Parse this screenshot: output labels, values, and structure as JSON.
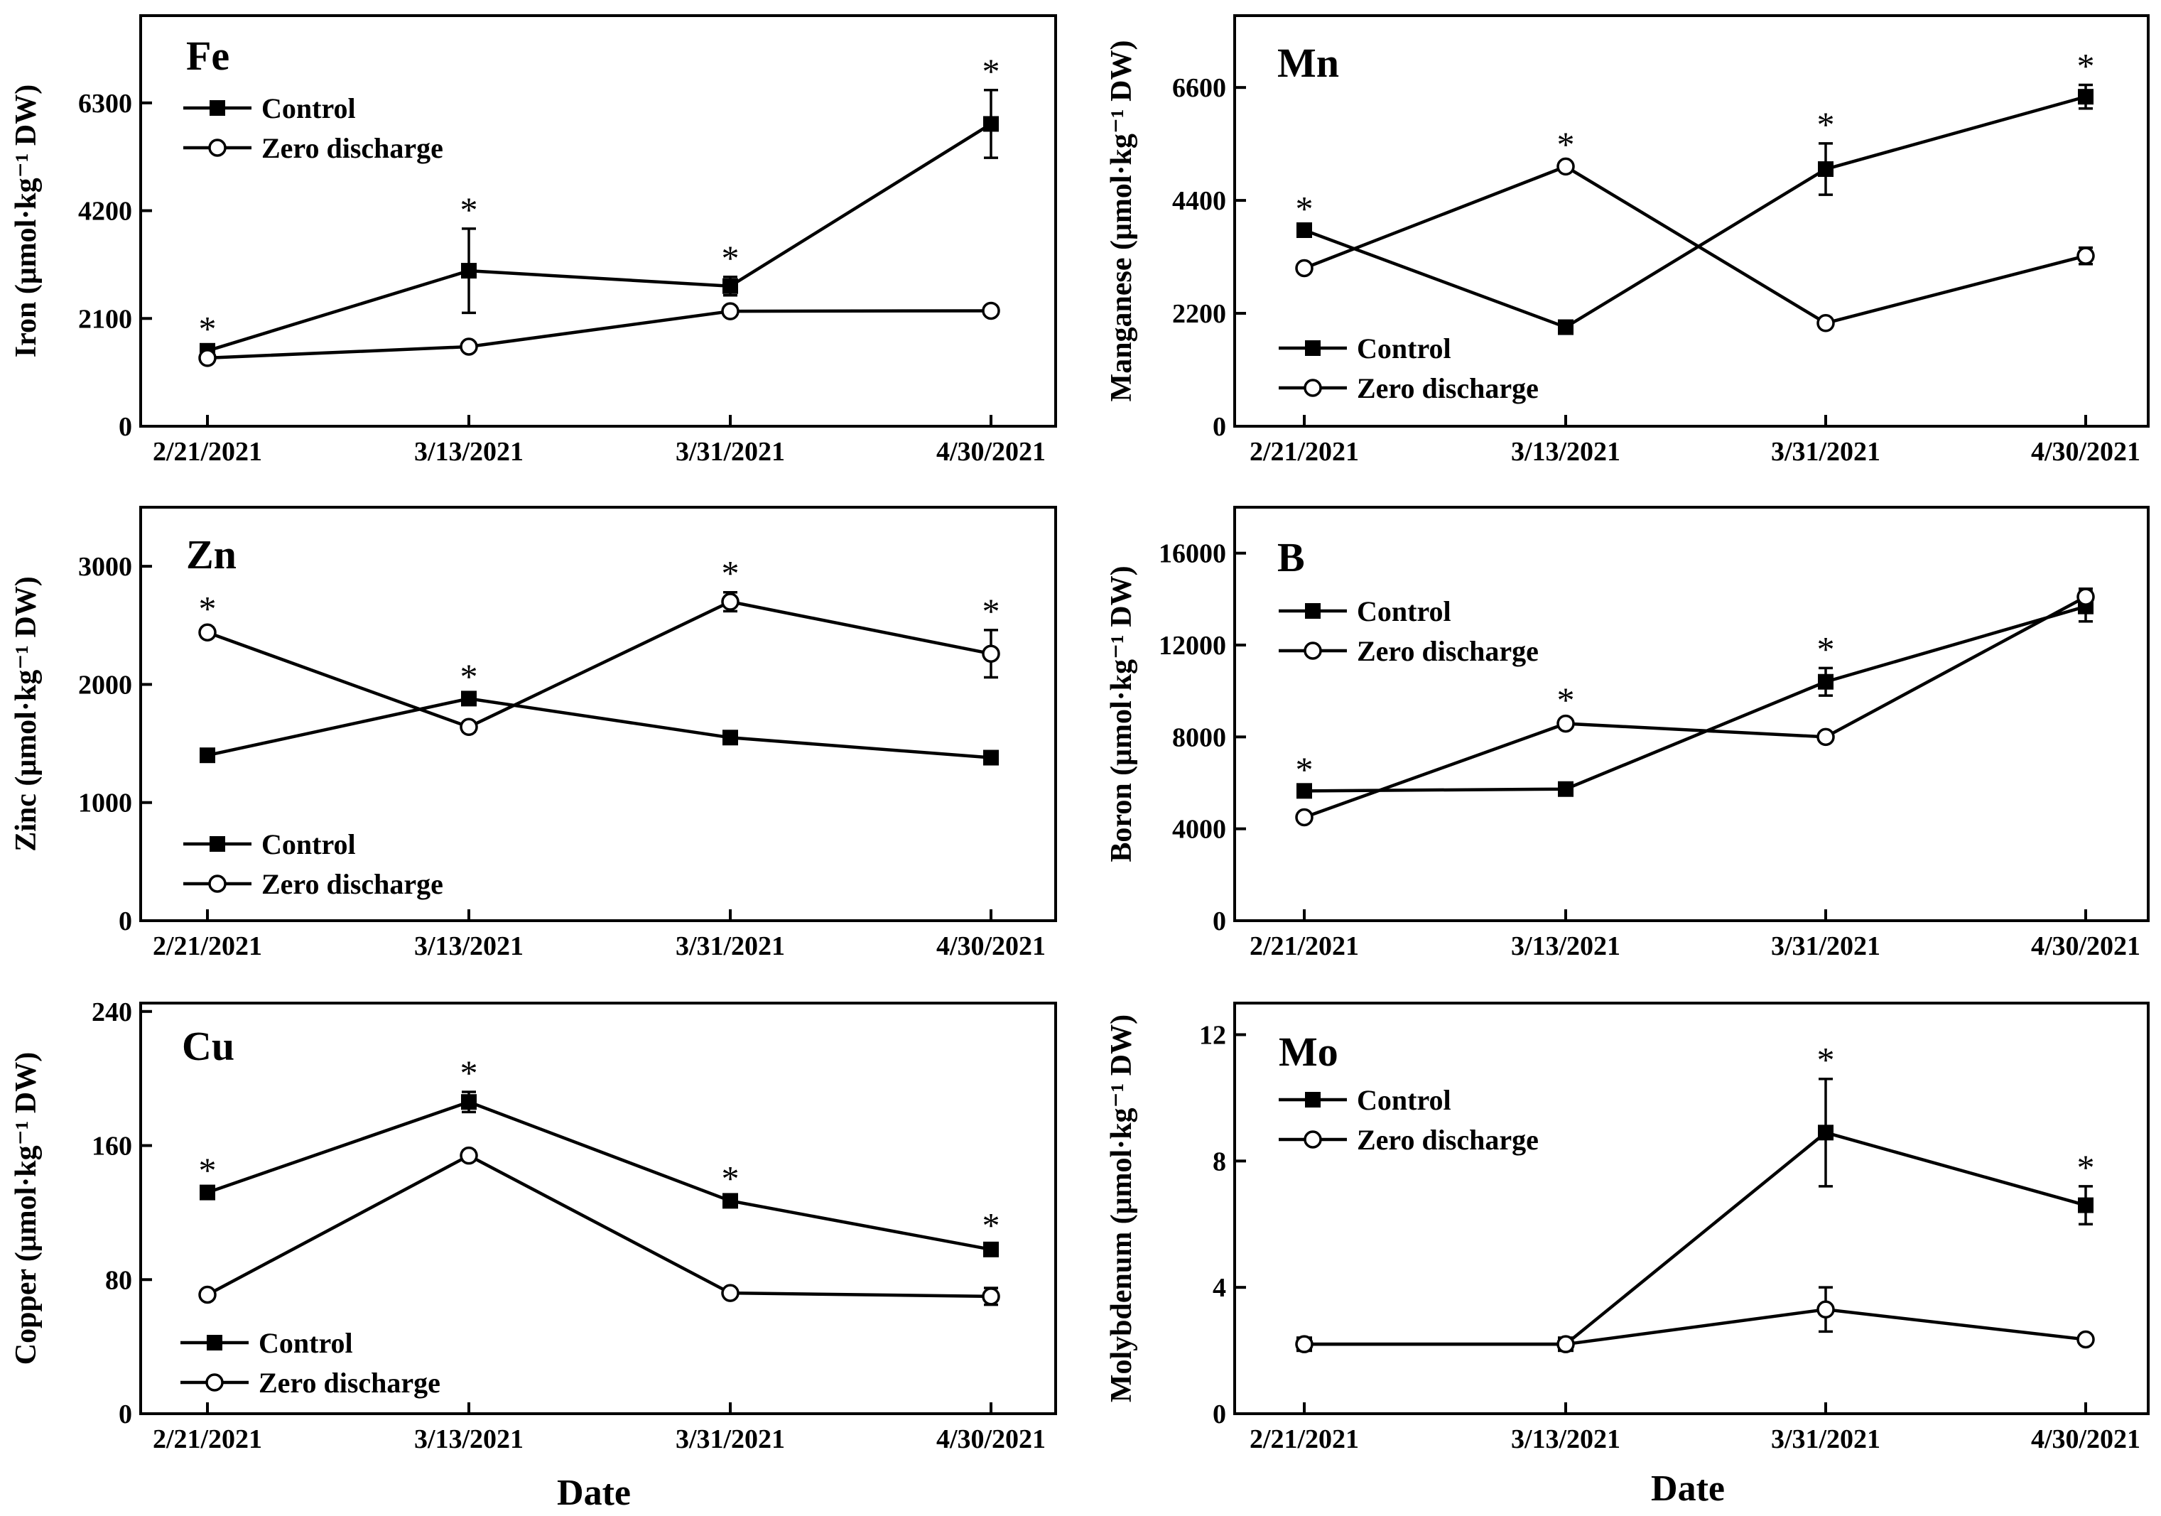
{
  "figure": {
    "xlabels": [
      "Date",
      "Date"
    ]
  },
  "chart_data": [
    {
      "type": "line",
      "title": "Fe",
      "ylabel": "Iron (μmol·kg⁻¹ DW)",
      "categories": [
        "2/21/2021",
        "3/13/2021",
        "3/31/2021",
        "4/30/2021"
      ],
      "ylim": [
        0,
        8000
      ],
      "yticks": [
        0,
        2100,
        4200,
        6300
      ],
      "legend_position": "top-left",
      "series": [
        {
          "name": "Control",
          "marker": "square",
          "values": [
            1470,
            3030,
            2730,
            5890
          ],
          "errors": [
            60,
            820,
            180,
            660
          ]
        },
        {
          "name": "Zero discharge",
          "marker": "circle",
          "values": [
            1330,
            1550,
            2240,
            2250
          ],
          "errors": [
            60,
            60,
            90,
            50
          ]
        }
      ],
      "significance": [
        "*",
        "*",
        "*",
        "*"
      ]
    },
    {
      "type": "line",
      "title": "Mn",
      "ylabel": "Manganese (μmol·kg⁻¹ DW)",
      "categories": [
        "2/21/2021",
        "3/13/2021",
        "3/31/2021",
        "4/30/2021"
      ],
      "ylim": [
        0,
        8000
      ],
      "yticks": [
        0,
        2200,
        4400,
        6600
      ],
      "legend_position": "bottom-left",
      "series": [
        {
          "name": "Control",
          "marker": "square",
          "values": [
            3820,
            1930,
            5010,
            6420
          ],
          "errors": [
            50,
            60,
            500,
            230
          ]
        },
        {
          "name": "Zero discharge",
          "marker": "circle",
          "values": [
            3080,
            5060,
            2010,
            3320
          ],
          "errors": [
            60,
            60,
            60,
            160
          ]
        }
      ],
      "significance": [
        "*",
        "*",
        "*",
        "*"
      ]
    },
    {
      "type": "line",
      "title": "Zn",
      "ylabel": "Zinc (μmol·kg⁻¹ DW)",
      "categories": [
        "2/21/2021",
        "3/13/2021",
        "3/31/2021",
        "4/30/2021"
      ],
      "ylim": [
        0,
        3500
      ],
      "yticks": [
        0,
        1000,
        2000,
        3000
      ],
      "legend_position": "bottom-left",
      "series": [
        {
          "name": "Control",
          "marker": "square",
          "values": [
            1400,
            1880,
            1550,
            1380
          ],
          "errors": [
            20,
            25,
            30,
            40
          ]
        },
        {
          "name": "Zero discharge",
          "marker": "circle",
          "values": [
            2440,
            1640,
            2700,
            2260
          ],
          "errors": [
            40,
            40,
            80,
            200
          ]
        }
      ],
      "significance": [
        "*",
        "*",
        "*",
        "*"
      ]
    },
    {
      "type": "line",
      "title": "B",
      "ylabel": "Boron (μmol·kg⁻¹ DW)",
      "categories": [
        "2/21/2021",
        "3/13/2021",
        "3/31/2021",
        "4/30/2021"
      ],
      "ylim": [
        0,
        18000
      ],
      "yticks": [
        0,
        4000,
        8000,
        12000,
        16000
      ],
      "legend_position": "top-left",
      "series": [
        {
          "name": "Control",
          "marker": "square",
          "values": [
            5650,
            5730,
            10400,
            13680
          ],
          "errors": [
            100,
            150,
            600,
            650
          ]
        },
        {
          "name": "Zero discharge",
          "marker": "circle",
          "values": [
            4500,
            8580,
            8000,
            14100
          ],
          "errors": [
            120,
            200,
            150,
            350
          ]
        }
      ],
      "significance": [
        "*",
        "*",
        "*",
        ""
      ]
    },
    {
      "type": "line",
      "title": "Cu",
      "ylabel": "Copper (μmol·kg⁻¹ DW)",
      "categories": [
        "2/21/2021",
        "3/13/2021",
        "3/31/2021",
        "4/30/2021"
      ],
      "ylim": [
        0,
        245
      ],
      "yticks": [
        0,
        80,
        160,
        240
      ],
      "legend_position": "bottom-left",
      "series": [
        {
          "name": "Control",
          "marker": "square",
          "values": [
            132,
            186,
            127,
            98
          ],
          "errors": [
            2,
            6,
            2,
            3
          ]
        },
        {
          "name": "Zero discharge",
          "marker": "circle",
          "values": [
            71,
            154,
            72,
            70
          ],
          "errors": [
            2,
            3,
            2,
            5
          ]
        }
      ],
      "significance": [
        "*",
        "*",
        "*",
        "*"
      ]
    },
    {
      "type": "line",
      "title": "Mo",
      "ylabel": "Molybdenum (μmol·kg⁻¹ DW)",
      "categories": [
        "2/21/2021",
        "3/13/2021",
        "3/31/2021",
        "4/30/2021"
      ],
      "ylim": [
        0,
        13
      ],
      "yticks": [
        0,
        4,
        8,
        12
      ],
      "legend_position": "top-left",
      "series": [
        {
          "name": "Control",
          "marker": "square",
          "values": [
            2.2,
            2.2,
            8.9,
            6.6
          ],
          "errors": [
            0.05,
            0.05,
            1.7,
            0.6
          ]
        },
        {
          "name": "Zero discharge",
          "marker": "circle",
          "values": [
            2.2,
            2.2,
            3.3,
            2.35
          ],
          "errors": [
            0.05,
            0.05,
            0.7,
            0.1
          ]
        }
      ],
      "significance": [
        "",
        "",
        "*",
        "*"
      ]
    }
  ]
}
